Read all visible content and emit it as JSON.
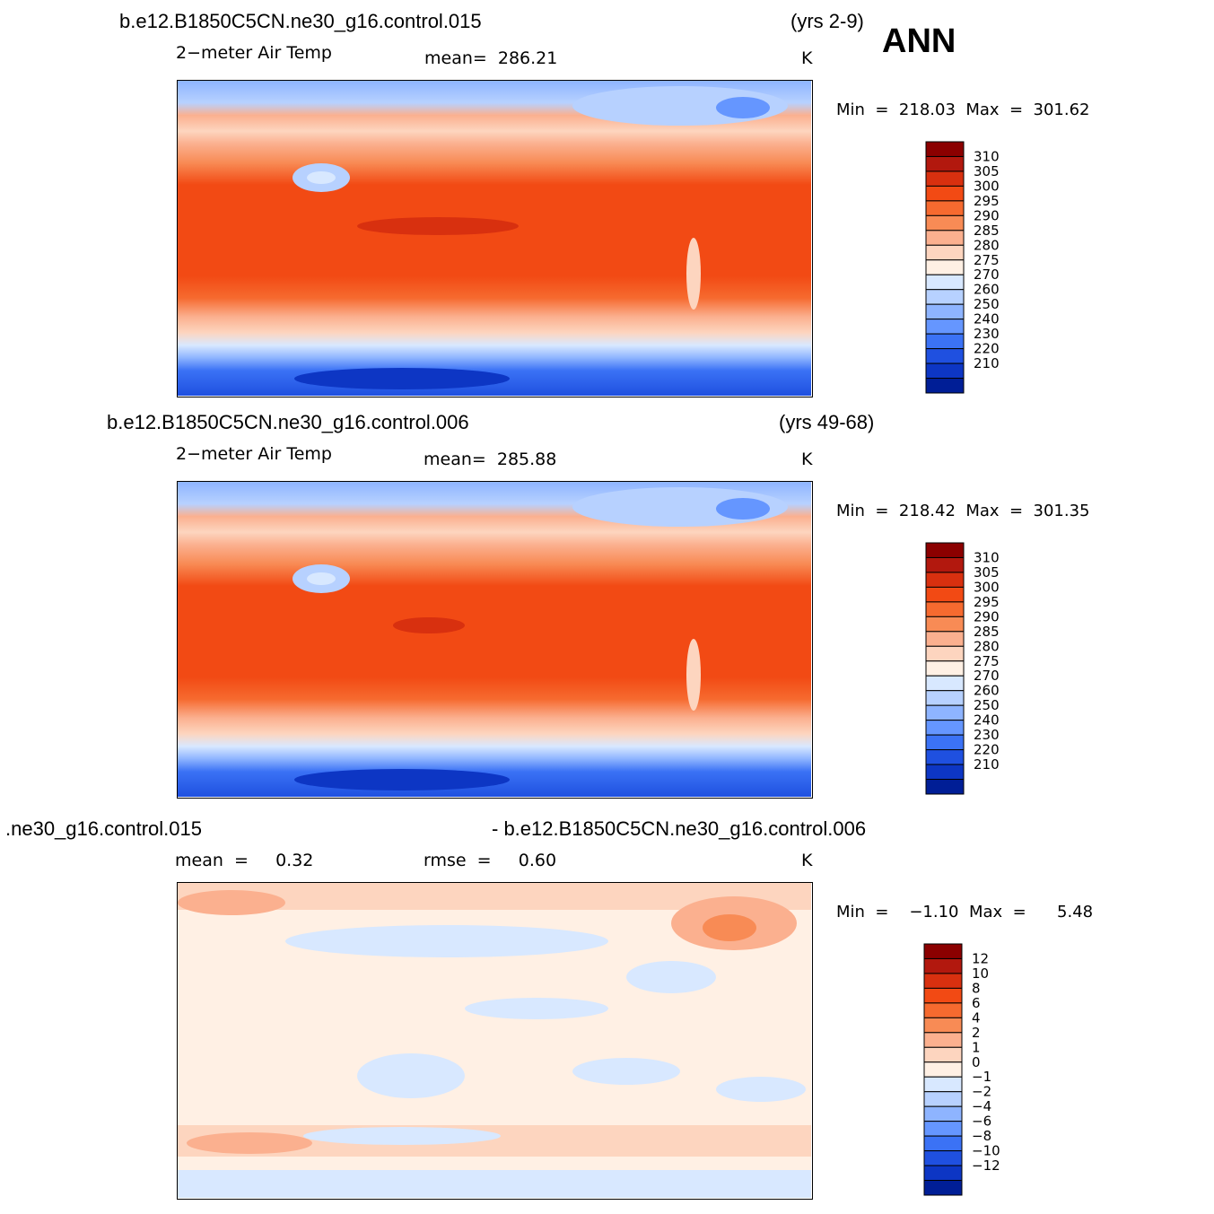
{
  "header": {
    "season": "ANN"
  },
  "panels": [
    {
      "case": "b.e12.B1850C5CN.ne30_g16.control.015",
      "years": "(yrs 2-9)",
      "variable": "2−meter Air Temp",
      "stat": "mean=  286.21",
      "units": "K",
      "minmax": "Min  =  218.03  Max  =  301.62",
      "colorbar": {
        "labels": [
          "310",
          "305",
          "300",
          "295",
          "290",
          "285",
          "280",
          "275",
          "270",
          "260",
          "250",
          "240",
          "230",
          "220",
          "210"
        ],
        "colors": [
          "#8b0000",
          "#b2180e",
          "#d8300f",
          "#f24a14",
          "#f66a2f",
          "#f88b55",
          "#fbb08f",
          "#fdd5bf",
          "#fff0e4",
          "#d8e8ff",
          "#b7d1ff",
          "#8eb4ff",
          "#6596ff",
          "#3b72f5",
          "#1f50e0",
          "#0d36c4",
          "#001e96"
        ]
      }
    },
    {
      "case": "b.e12.B1850C5CN.ne30_g16.control.006",
      "years": "(yrs 49-68)",
      "variable": "2−meter Air Temp",
      "stat": "mean=  285.88",
      "units": "K",
      "minmax": "Min  =  218.42  Max  =  301.35",
      "colorbar": {
        "labels": [
          "310",
          "305",
          "300",
          "295",
          "290",
          "285",
          "280",
          "275",
          "270",
          "260",
          "250",
          "240",
          "230",
          "220",
          "210"
        ],
        "colors": [
          "#8b0000",
          "#b2180e",
          "#d8300f",
          "#f24a14",
          "#f66a2f",
          "#f88b55",
          "#fbb08f",
          "#fdd5bf",
          "#fff0e4",
          "#d8e8ff",
          "#b7d1ff",
          "#8eb4ff",
          "#6596ff",
          "#3b72f5",
          "#1f50e0",
          "#0d36c4",
          "#001e96"
        ]
      }
    },
    {
      "case_left": ".ne30_g16.control.015",
      "case_right": "- b.e12.B1850C5CN.ne30_g16.control.006",
      "stat_left": "mean  =     0.32",
      "stat_mid": "rmse  =     0.60",
      "units": "K",
      "minmax": "Min  =    −1.10  Max  =      5.48",
      "colorbar": {
        "labels": [
          "12",
          "10",
          "8",
          "6",
          "4",
          "2",
          "1",
          "0",
          "−1",
          "−2",
          "−4",
          "−6",
          "−8",
          "−10",
          "−12"
        ],
        "colors": [
          "#8b0000",
          "#b2180e",
          "#d8300f",
          "#f24a14",
          "#f66a2f",
          "#f88b55",
          "#fbb08f",
          "#fdd5bf",
          "#fff0e4",
          "#d8e8ff",
          "#b7d1ff",
          "#8eb4ff",
          "#6596ff",
          "#3b72f5",
          "#1f50e0",
          "#0d36c4",
          "#001e96"
        ]
      }
    }
  ]
}
